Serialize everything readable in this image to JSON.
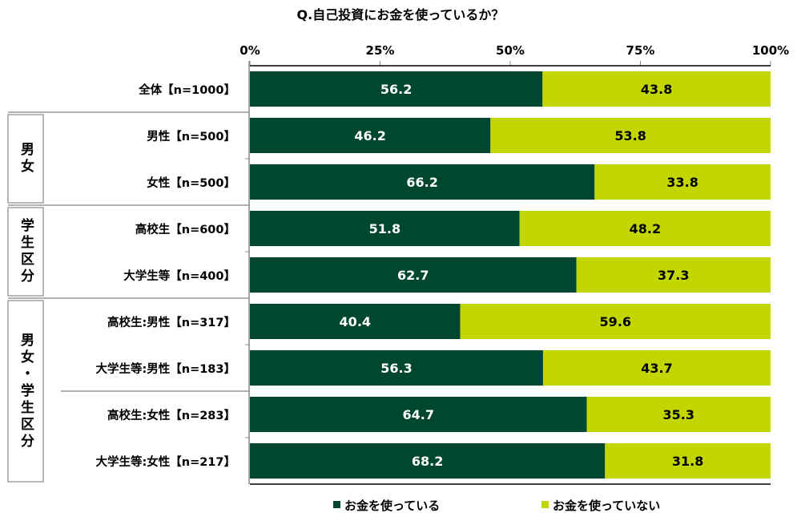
{
  "chart_data": {
    "type": "bar",
    "stacked": true,
    "orientation": "horizontal",
    "title": "Q.自己投資にお金を使っているか？",
    "xlim": [
      0,
      100
    ],
    "x_ticks": [
      "0%",
      "25%",
      "50%",
      "75%",
      "100%"
    ],
    "categories": [
      "全体【n=1000】",
      "男性【n=500】",
      "女性【n=500】",
      "高校生【n=600】",
      "大学生等【n=400】",
      "高校生:男性【n=317】",
      "大学生等:男性【n=183】",
      "高校生:女性【n=283】",
      "大学生等:女性【n=217】"
    ],
    "groups": [
      {
        "label": "男女",
        "rows": [
          1,
          2
        ]
      },
      {
        "label": "学生区分",
        "rows": [
          3,
          4
        ]
      },
      {
        "label": "男女・学生区分",
        "rows": [
          5,
          6,
          7,
          8
        ]
      }
    ],
    "series": [
      {
        "name": "お金を使っている",
        "color": "#004731",
        "values": [
          56.2,
          46.2,
          66.2,
          51.8,
          62.7,
          40.4,
          56.3,
          64.7,
          68.2
        ]
      },
      {
        "name": "お金を使っていない",
        "color": "#C4D600",
        "values": [
          43.8,
          53.8,
          33.8,
          48.2,
          37.3,
          59.6,
          43.7,
          35.3,
          31.8
        ]
      }
    ],
    "legend_position": "bottom"
  }
}
